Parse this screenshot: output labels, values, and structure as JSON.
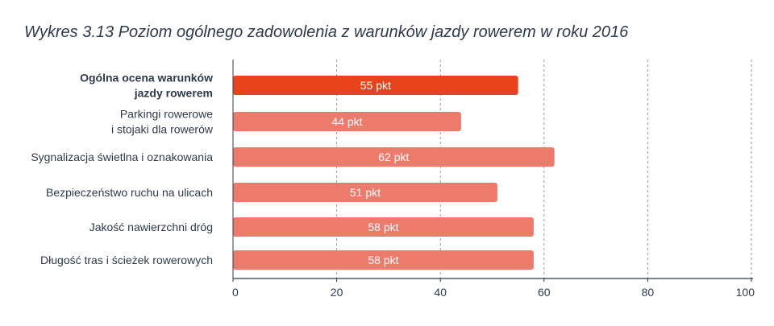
{
  "chart_data": {
    "type": "bar",
    "orientation": "horizontal",
    "title": "Wykres 3.13 Poziom ogólnego zadowolenia z warunków jazdy rowerem w roku 2016",
    "categories": [
      {
        "lines": [
          "Ogólna ocena warunków",
          "jazdy rowerem"
        ],
        "bold": true
      },
      {
        "lines": [
          "Parkingi rowerowe",
          "i stojaki dla rowerów"
        ],
        "bold": false
      },
      {
        "lines": [
          "Sygnalizacja świetlna i oznakowania"
        ],
        "bold": false
      },
      {
        "lines": [
          "Bezpieczeństwo ruchu na ulicach"
        ],
        "bold": false
      },
      {
        "lines": [
          "Jakość nawierzchni dróg"
        ],
        "bold": false
      },
      {
        "lines": [
          "Długość tras i ścieżek rowerowych"
        ],
        "bold": false
      }
    ],
    "values": [
      55,
      44,
      62,
      51,
      58,
      58
    ],
    "data_labels": [
      "55 pkt",
      "44 pkt",
      "62 pkt",
      "51 pkt",
      "58 pkt",
      "58 pkt"
    ],
    "xlim": [
      0,
      100
    ],
    "xticks": [
      0,
      20,
      40,
      60,
      80,
      100
    ],
    "grid": "vertical dashed",
    "colors": {
      "highlight": "#e8431b",
      "bar": "#ec7b6c",
      "grid": "#9a9a9a",
      "axis": "#2c3a4b",
      "text": "#2c3a4b"
    }
  }
}
